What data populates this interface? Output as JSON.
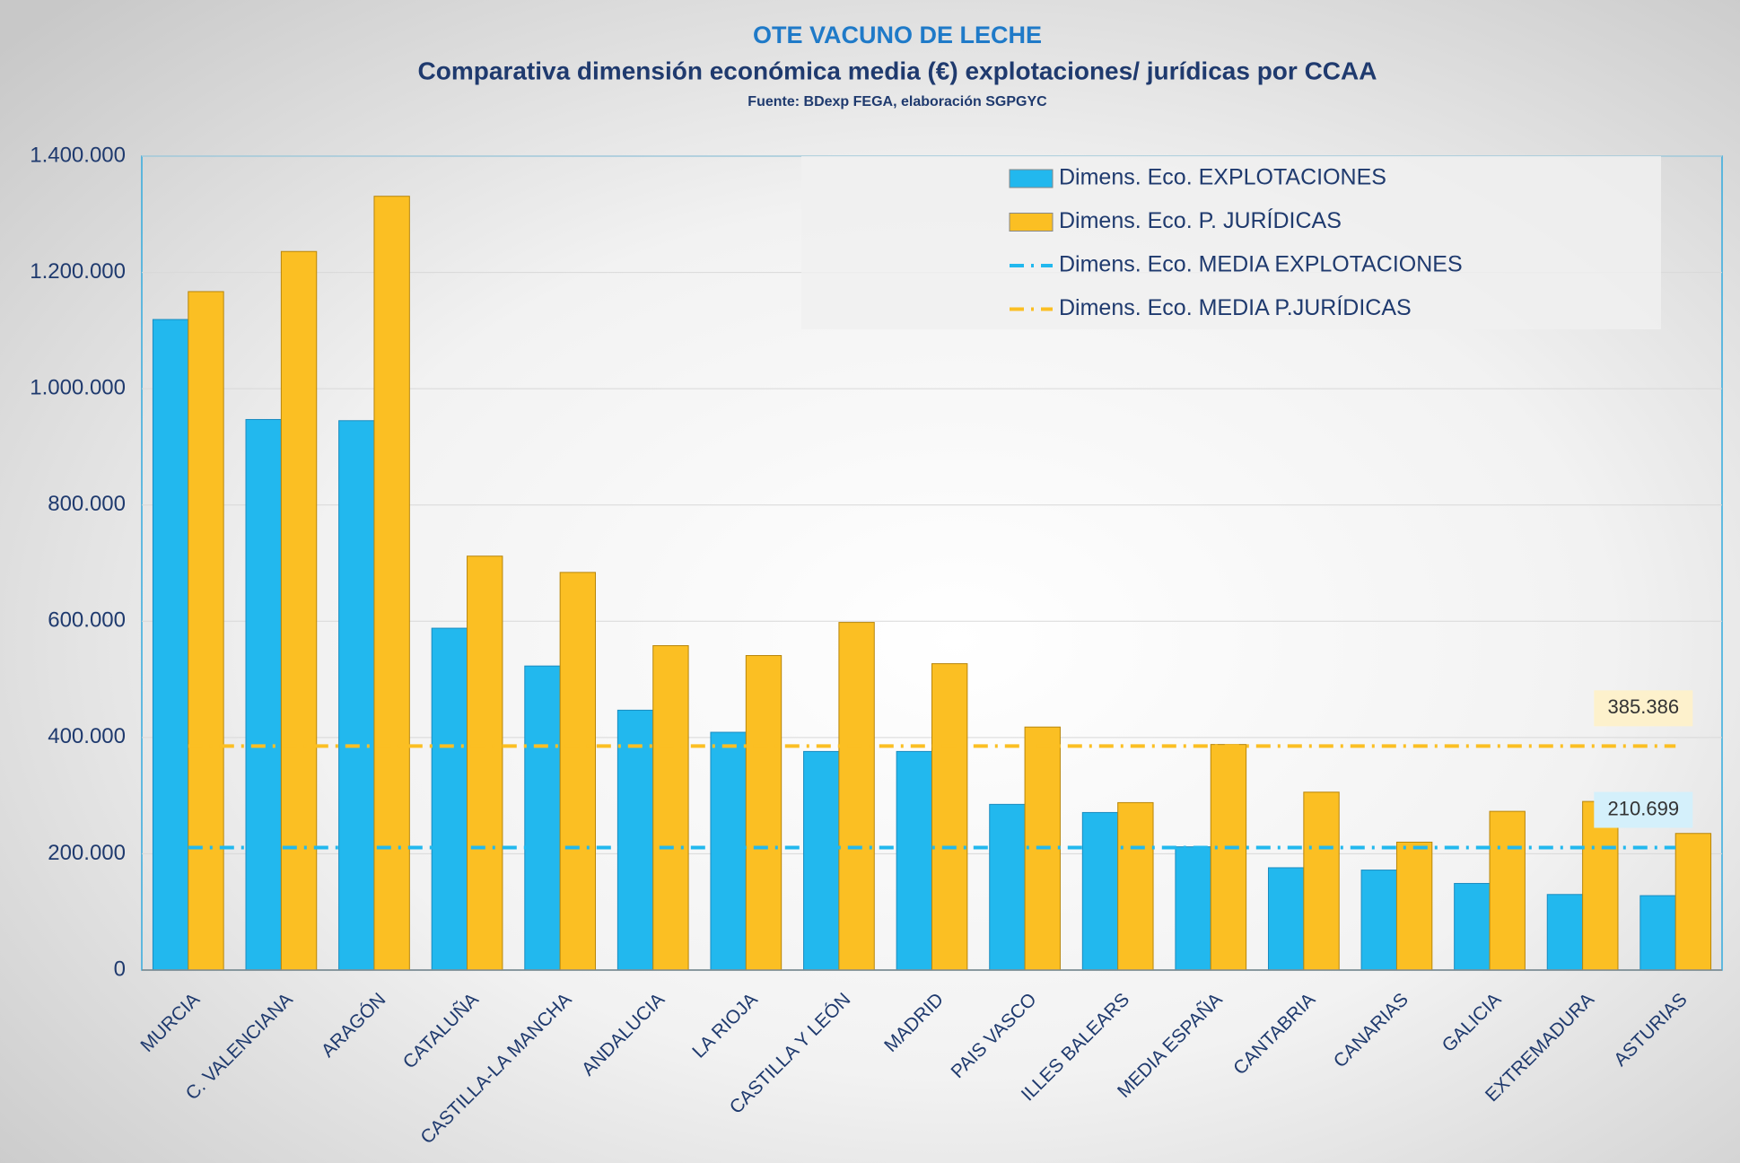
{
  "chart_data": {
    "type": "bar",
    "title": "OTE VACUNO DE LECHE",
    "subtitle": "Comparativa dimensión económica media (€) explotaciones/ jurídicas por CCAA",
    "source": "Fuente: BDexp FEGA, elaboración SGPGYC",
    "categories": [
      "MURCIA",
      "C. VALENCIANA",
      "ARAGÓN",
      "CATALUÑA",
      "CASTILLA-LA MANCHA",
      "ANDALUCIA",
      "LA RIOJA",
      "CASTILLA Y LEÓN",
      "MADRID",
      "PAIS VASCO",
      "ILLES BALEARS",
      "MEDIA ESPAÑA",
      "CANTABRIA",
      "CANARIAS",
      "GALICIA",
      "EXTREMADURA",
      "ASTURIAS"
    ],
    "series": [
      {
        "name": "Dimens. Eco. EXPLOTACIONES",
        "color": "#22b8ee",
        "values": [
          1119000,
          947000,
          945000,
          588000,
          523000,
          447000,
          409000,
          376000,
          376000,
          285000,
          271000,
          212000,
          176000,
          172000,
          149000,
          130000,
          128000
        ]
      },
      {
        "name": "Dimens. Eco. P. JURÍDICAS",
        "color": "#fbbf23",
        "values": [
          1167000,
          1236000,
          1331000,
          712000,
          684000,
          558000,
          541000,
          598000,
          527000,
          418000,
          288000,
          388000,
          306000,
          220000,
          273000,
          290000,
          235000
        ]
      }
    ],
    "mean_lines": [
      {
        "name": "Dimens. Eco. MEDIA EXPLOTACIONES",
        "color": "#22b8ee",
        "value": 210699,
        "label": "210.699"
      },
      {
        "name": "Dimens. Eco. MEDIA P.JURÍDICAS",
        "color": "#fbbf23",
        "value": 385386,
        "label": "385.386"
      }
    ],
    "ylim": [
      0,
      1400000
    ],
    "yticks": [
      0,
      {
        "value": 200000,
        "label": "200.000"
      },
      {
        "value": 400000,
        "label": "400.000"
      },
      {
        "value": 600000,
        "label": "600.000"
      },
      {
        "value": 800000,
        "label": "800.000"
      },
      {
        "value": 1000000,
        "label": "1.000.000"
      },
      {
        "value": 1200000,
        "label": "1.200.000"
      },
      {
        "value": 1400000,
        "label": "1.400.000"
      }
    ],
    "grid": true,
    "legend": "top-right"
  }
}
